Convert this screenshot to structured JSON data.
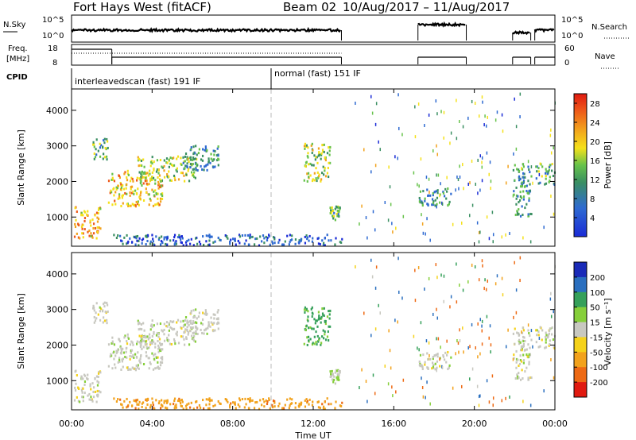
{
  "chart_data": {
    "type": "heatmap",
    "title": {
      "station": "Fort Hays West (fitACF)",
      "beam": "Beam 02",
      "dates": "10/Aug/2017 – 11/Aug/2017"
    },
    "xlabel": "Time UT",
    "x_ticks": [
      "00:00",
      "04:00",
      "08:00",
      "12:00",
      "16:00",
      "20:00",
      "00:00"
    ],
    "x_range_hours": [
      0,
      24
    ],
    "noise_panel": {
      "left_label_1": "N.Sky",
      "left_label_2": "10^5",
      "left_label_3": "10^0",
      "right_label": "N.Search",
      "right_ticks": [
        "10^5",
        "10^0"
      ]
    },
    "freq_panel": {
      "left_label_1": "Freq.",
      "left_label_2": "[MHz]",
      "left_ticks": [
        "18",
        "8"
      ],
      "right_label": "Nave",
      "right_ticks": [
        "60",
        "0"
      ]
    },
    "cpid": {
      "label": "CPID",
      "segments": [
        {
          "name": "interleavedscan (fast) 191 IF",
          "start_h": 0,
          "end_h": 10
        },
        {
          "name": "normal (fast) 151 IF",
          "start_h": 10,
          "end_h": 24
        }
      ]
    },
    "power_panel": {
      "ylabel": "Slant Range [km]",
      "yticks": [
        "1000",
        "2000",
        "3000",
        "4000"
      ],
      "ylim_km": [
        180,
        4600
      ],
      "colorbar_label": "Power [dB]",
      "colorbar_ticks": [
        "4",
        "8",
        "12",
        "16",
        "20",
        "24",
        "28"
      ],
      "colorbar_range": [
        0,
        30
      ]
    },
    "velocity_panel": {
      "ylabel": "Slant Range [km]",
      "yticks": [
        "1000",
        "2000",
        "3000",
        "4000"
      ],
      "ylim_km": [
        180,
        4600
      ],
      "colorbar_label": "Velocity [m s⁻¹]",
      "colorbar_ticks": [
        "200",
        "100",
        "50",
        "15",
        "-15",
        "-50",
        "-100",
        "-200"
      ]
    },
    "echo_regions": [
      {
        "t0": 0.1,
        "t1": 1.4,
        "r0": 400,
        "r1": 1300,
        "p": 24,
        "v": 0
      },
      {
        "t0": 1.0,
        "t1": 1.8,
        "r0": 2600,
        "r1": 3200,
        "p": 16,
        "v": 0
      },
      {
        "t0": 1.8,
        "t1": 4.5,
        "r0": 1300,
        "r1": 2300,
        "p": 22,
        "v": 0
      },
      {
        "t0": 3.2,
        "t1": 6.2,
        "r0": 2000,
        "r1": 2700,
        "p": 18,
        "v": 0
      },
      {
        "t0": 5.5,
        "t1": 7.3,
        "r0": 2300,
        "r1": 3000,
        "p": 12,
        "v": 0
      },
      {
        "t0": 2.0,
        "t1": 13.4,
        "r0": 200,
        "r1": 500,
        "p": 8,
        "v": -60
      },
      {
        "t0": 11.5,
        "t1": 12.8,
        "r0": 2000,
        "r1": 3100,
        "p": 18,
        "v": 40
      },
      {
        "t0": 12.8,
        "t1": 13.3,
        "r0": 900,
        "r1": 1300,
        "p": 16,
        "v": 10
      },
      {
        "t0": 17.2,
        "t1": 18.8,
        "r0": 1300,
        "r1": 1800,
        "p": 12,
        "v": 0
      },
      {
        "t0": 21.9,
        "t1": 22.8,
        "r0": 1000,
        "r1": 2500,
        "p": 12,
        "v": 0
      },
      {
        "t0": 23.0,
        "t1": 24.0,
        "r0": 1900,
        "r1": 2500,
        "p": 14,
        "v": 0
      }
    ]
  }
}
